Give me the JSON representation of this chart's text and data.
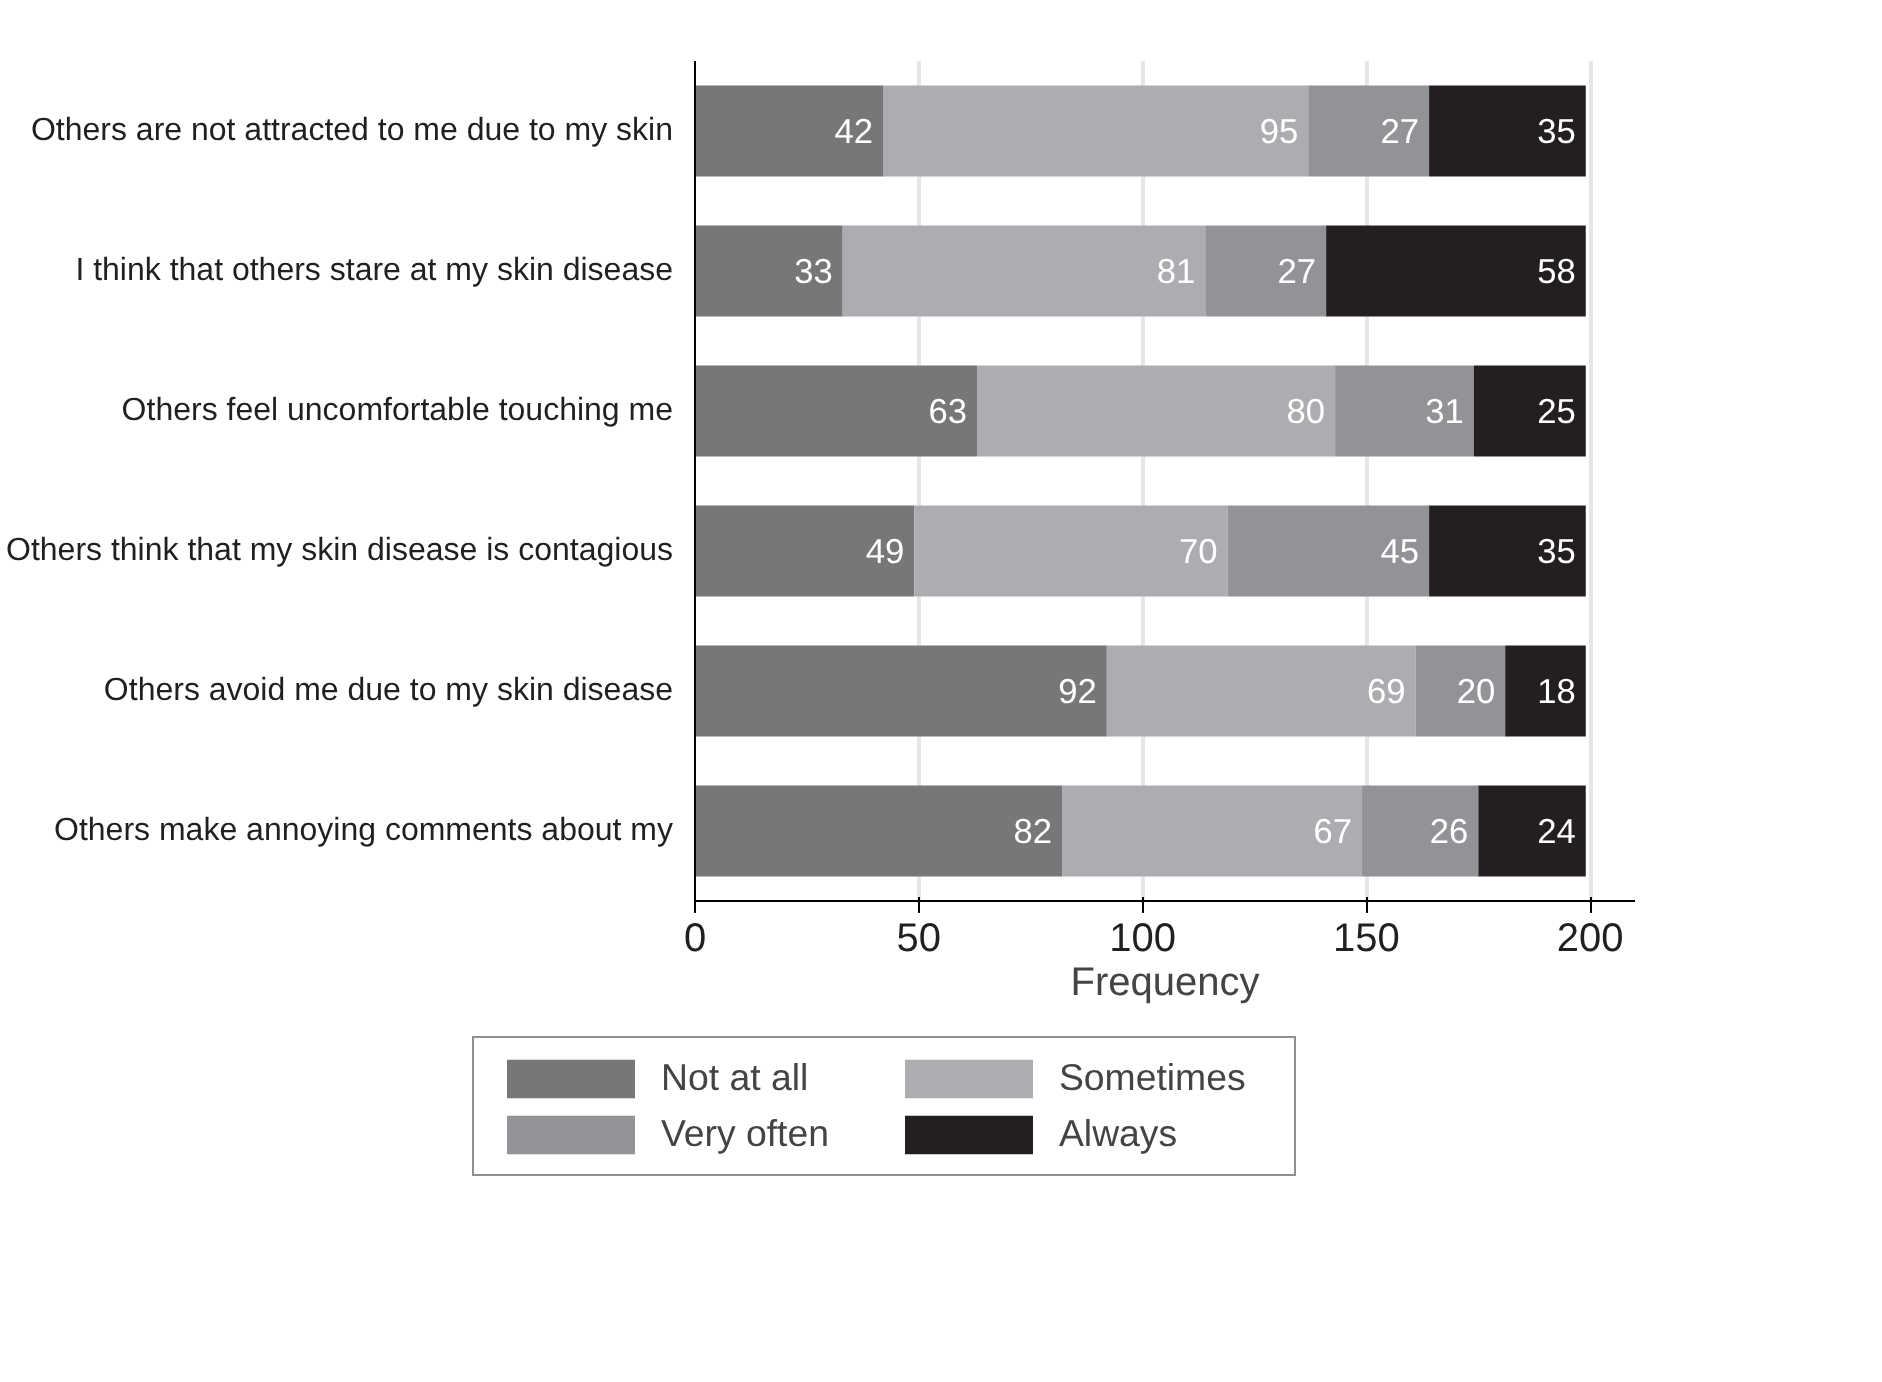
{
  "chart_data": {
    "type": "bar",
    "orientation": "horizontal",
    "stacked": true,
    "xlabel": "Frequency",
    "categories": [
      "Others are not attracted to me due to my skin",
      "I think that others stare at my skin disease",
      "Others feel uncomfortable touching me",
      "Others think that my skin disease is contagious",
      "Others avoid me due to my skin disease",
      "Others make annoying comments about my"
    ],
    "series": [
      {
        "name": "Not at all",
        "color": "#77777a",
        "values": [
          42,
          33,
          63,
          49,
          92,
          82
        ]
      },
      {
        "name": "Sometimes",
        "color": "#acadb0",
        "values": [
          95,
          81,
          80,
          70,
          69,
          67
        ]
      },
      {
        "name": "Very often",
        "color": "#929396",
        "values": [
          27,
          27,
          31,
          45,
          20,
          26
        ]
      },
      {
        "name": "Always",
        "color": "#231f20",
        "values": [
          35,
          58,
          25,
          35,
          18,
          24
        ]
      }
    ],
    "xlim": [
      0,
      210
    ],
    "xticks": [
      0,
      50,
      100,
      150,
      200
    ],
    "grid": "x",
    "data_labels": true,
    "legend": "bottom"
  }
}
